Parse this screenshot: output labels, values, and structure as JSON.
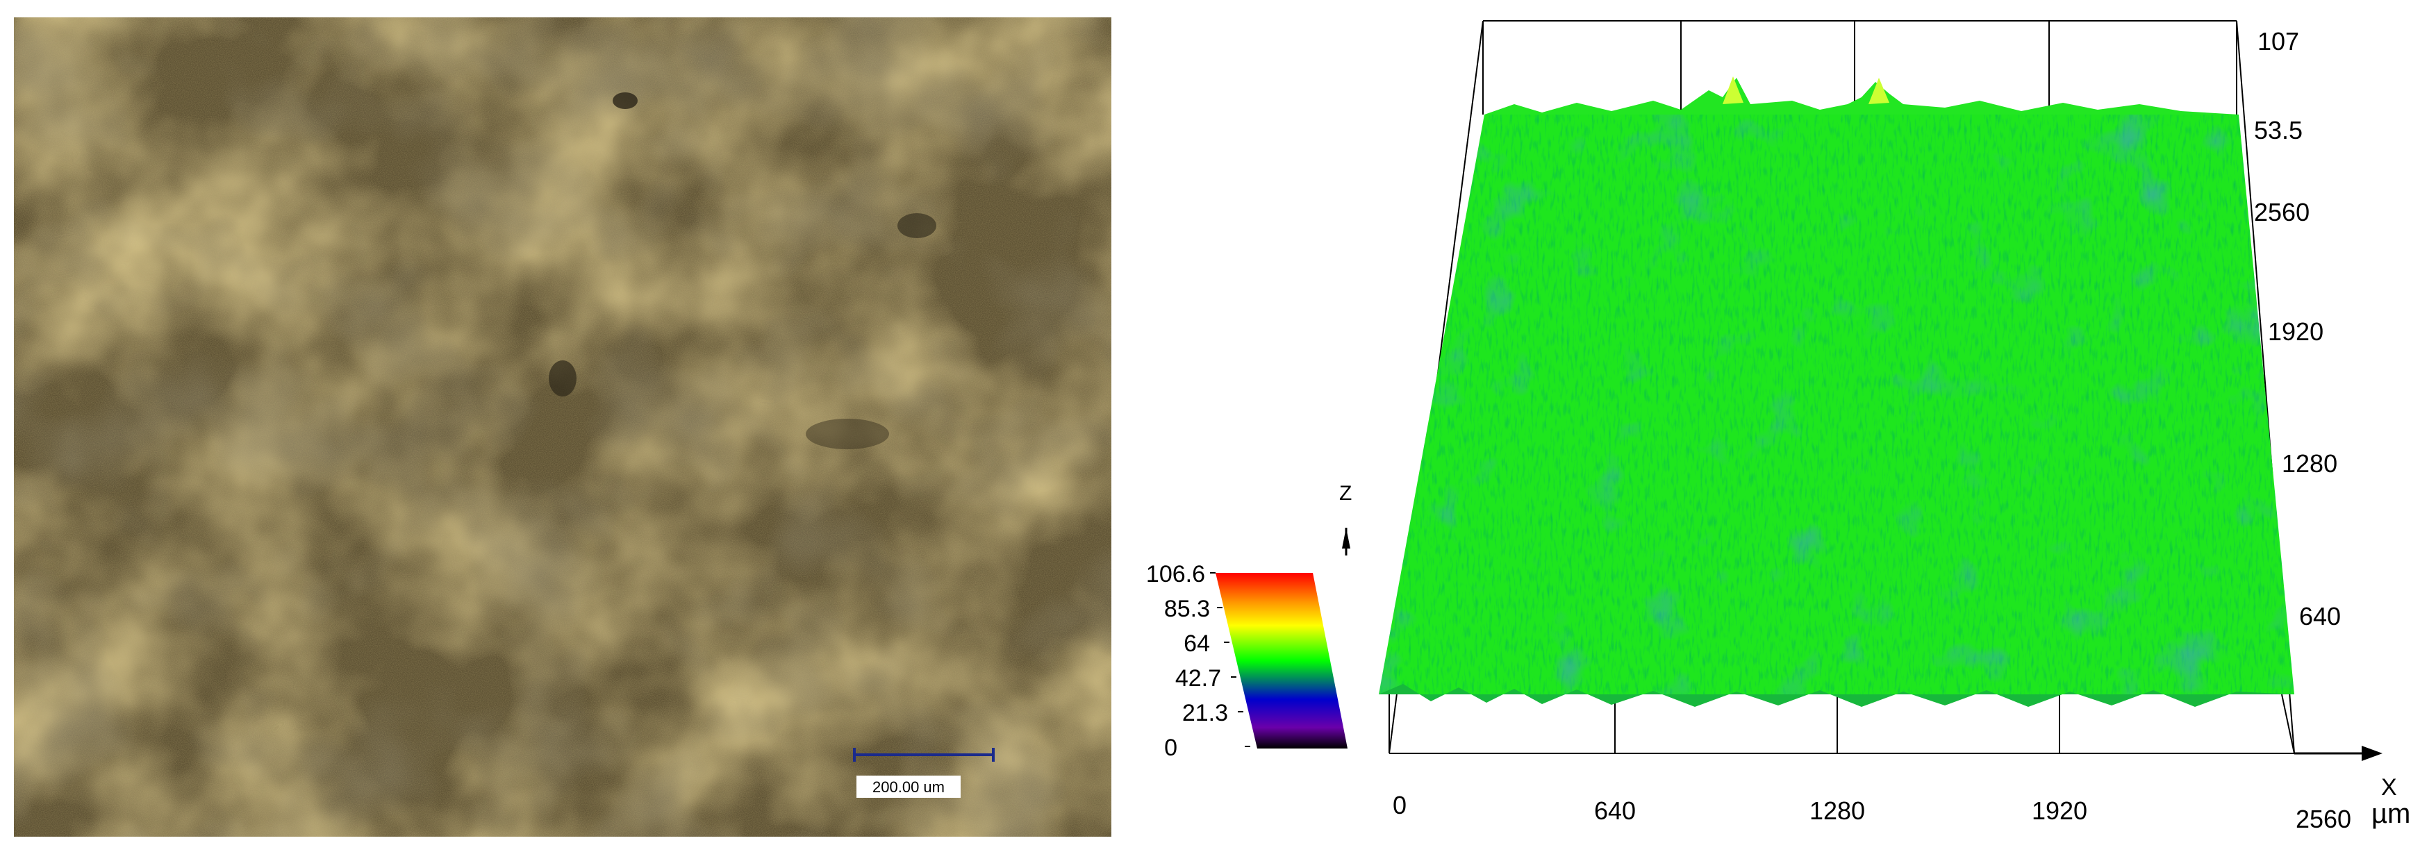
{
  "micrograph": {
    "scale_bar_label": "200.00 um"
  },
  "surface_plot": {
    "z_axis_label": "Z",
    "x_axis_label": "X",
    "x_unit": "µm",
    "x_ticks": [
      "0",
      "640",
      "1280",
      "1920",
      "2560"
    ],
    "y_ticks": [
      "640",
      "1280",
      "1920",
      "2560"
    ],
    "z_ticks": [
      "53.5",
      "107"
    ],
    "colorbar_ticks": [
      "106.6",
      "85.3",
      "64",
      "42.7",
      "21.3",
      "0"
    ],
    "colorbar_colors": [
      "#ff0000",
      "#ff9900",
      "#ffff00",
      "#00ff00",
      "#0000cc",
      "#6a00aa",
      "#000000"
    ]
  }
}
